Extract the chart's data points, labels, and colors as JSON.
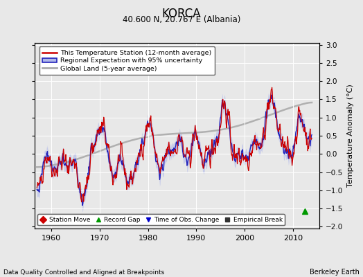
{
  "title": "KORCA",
  "subtitle": "40.600 N, 20.767 E (Albania)",
  "xlabel_note": "Data Quality Controlled and Aligned at Breakpoints",
  "credit": "Berkeley Earth",
  "ylabel": "Temperature Anomaly (°C)",
  "xlim": [
    1956.5,
    2015.5
  ],
  "ylim": [
    -2.05,
    3.05
  ],
  "yticks": [
    -2,
    -1.5,
    -1,
    -0.5,
    0,
    0.5,
    1,
    1.5,
    2,
    2.5,
    3
  ],
  "xticks": [
    1960,
    1970,
    1980,
    1990,
    2000,
    2010
  ],
  "bg_color": "#e8e8e8",
  "plot_bg_color": "#e8e8e8",
  "grid_color": "white",
  "red_color": "#cc0000",
  "blue_color": "#2222bb",
  "blue_fill_color": "#b0b8e8",
  "gray_color": "#aaaaaa",
  "legend_items": [
    "This Temperature Station (12-month average)",
    "Regional Expectation with 95% uncertainty",
    "Global Land (5-year average)"
  ],
  "marker_legend": [
    {
      "marker": "D",
      "color": "#cc0000",
      "label": "Station Move"
    },
    {
      "marker": "^",
      "color": "#009900",
      "label": "Record Gap"
    },
    {
      "marker": "v",
      "color": "#0000cc",
      "label": "Time of Obs. Change"
    },
    {
      "marker": "s",
      "color": "#333333",
      "label": "Empirical Break"
    }
  ],
  "green_marker_x": 2012.5,
  "green_marker_y": -1.58
}
